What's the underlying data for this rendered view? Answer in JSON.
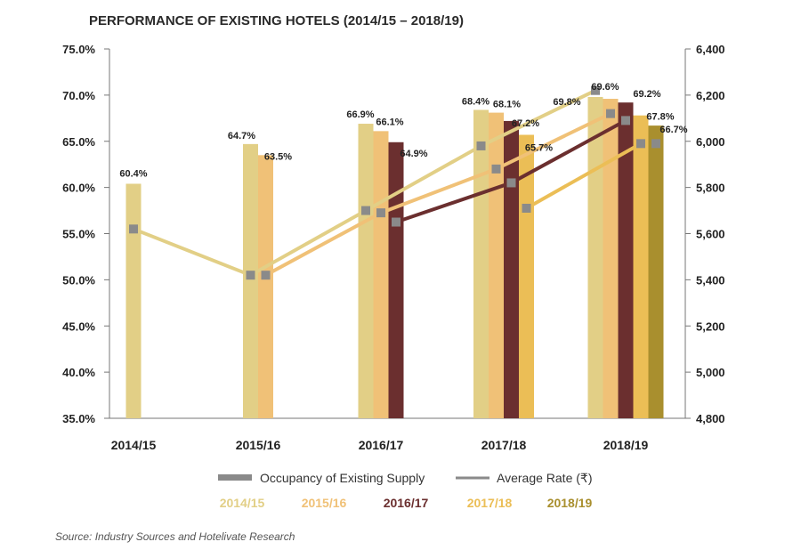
{
  "chart_data": {
    "type": "bar",
    "title": "PERFORMANCE OF EXISTING HOTELS (2014/15 – 2018/19)",
    "categories": [
      "2014/15",
      "2015/16",
      "2016/17",
      "2017/18",
      "2018/19"
    ],
    "y_left": {
      "ylim": [
        35,
        75
      ],
      "ticks": [
        "35.0%",
        "40.0%",
        "45.0%",
        "50.0%",
        "55.0%",
        "60.0%",
        "65.0%",
        "70.0%",
        "75.0%"
      ],
      "tick_values": [
        35,
        40,
        45,
        50,
        55,
        60,
        65,
        70,
        75
      ]
    },
    "y_right": {
      "ylim": [
        4800,
        6400
      ],
      "ticks": [
        "4,800",
        "5,000",
        "5,200",
        "5,400",
        "5,600",
        "5,800",
        "6,000",
        "6,200",
        "6,400"
      ],
      "tick_values": [
        4800,
        5000,
        5200,
        5400,
        5600,
        5800,
        6000,
        6200,
        6400
      ]
    },
    "series": [
      {
        "name": "2014/15",
        "color": "#e2cf86",
        "occupancy": [
          60.4,
          64.7,
          66.9,
          68.4,
          69.8
        ],
        "occupancy_labels": [
          "60.4%",
          "64.7%",
          "66.9%",
          "68.4%",
          "69.8%"
        ],
        "average_rate": [
          5620,
          5420,
          5700,
          5980,
          6220
        ]
      },
      {
        "name": "2015/16",
        "color": "#f0c177",
        "occupancy": [
          null,
          63.5,
          66.1,
          68.1,
          69.6
        ],
        "occupancy_labels": [
          null,
          "63.5%",
          "66.1%",
          "68.1%",
          "69.6%"
        ],
        "average_rate": [
          null,
          5420,
          5690,
          5880,
          6120
        ]
      },
      {
        "name": "2016/17",
        "color": "#6b2f2f",
        "occupancy": [
          null,
          null,
          64.9,
          67.2,
          69.2
        ],
        "occupancy_labels": [
          null,
          null,
          "64.9%",
          "67.2%",
          "69.2%"
        ],
        "average_rate": [
          null,
          null,
          5650,
          5820,
          6090
        ]
      },
      {
        "name": "2017/18",
        "color": "#ebbe56",
        "occupancy": [
          null,
          null,
          null,
          65.7,
          67.8
        ],
        "occupancy_labels": [
          null,
          null,
          null,
          "65.7%",
          "67.8%"
        ],
        "average_rate": [
          null,
          null,
          null,
          5710,
          5990
        ]
      },
      {
        "name": "2018/19",
        "color": "#a98f2e",
        "occupancy": [
          null,
          null,
          null,
          null,
          66.7
        ],
        "occupancy_labels": [
          null,
          null,
          null,
          null,
          "66.7%"
        ],
        "average_rate": [
          null,
          null,
          null,
          null,
          5990
        ]
      }
    ],
    "legend": {
      "occupancy_label": "Occupancy of Existing Supply",
      "rate_label": "Average Rate (₹)",
      "marker_color": "#8a8a8a"
    },
    "source": "Source: Industry Sources and Hotelivate Research"
  }
}
